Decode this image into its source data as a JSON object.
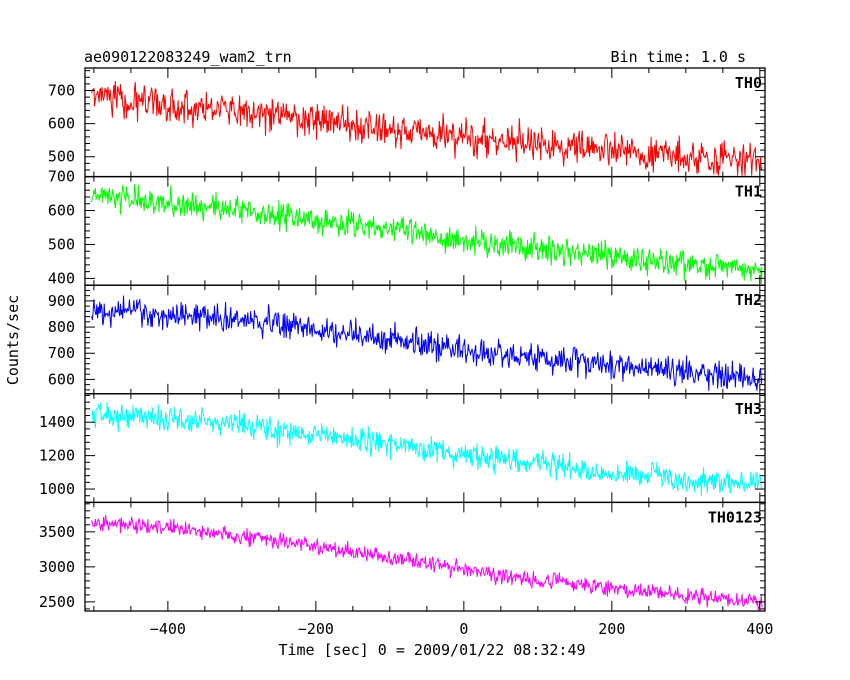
{
  "header": {
    "title": "ae090122083249_wam2_trn",
    "bin_time": "Bin time: 1.0 s"
  },
  "chart_data": {
    "type": "line",
    "title": "ae090122083249_wam2_trn",
    "subtitle": "Bin time: 1.0 s",
    "xlabel": "Time [sec] 0 = 2009/01/22 08:32:49",
    "ylabel": "Counts/sec",
    "xlim": [
      -512,
      407
    ],
    "xticks": [
      -400,
      -200,
      0,
      200,
      400
    ],
    "x_tick_labels": [
      "−400",
      "−200",
      "0",
      "200",
      "400"
    ],
    "data_x_range": [
      -503,
      403
    ],
    "panels": [
      {
        "name": "TH0",
        "color": "#ff0000",
        "ylim": [
          440,
          768
        ],
        "yticks": [
          500,
          600,
          700
        ],
        "y_tick_labels": [
          "500",
          "600",
          "700"
        ],
        "trend": {
          "x": [
            -500,
            -400,
            -300,
            -200,
            -100,
            0,
            100,
            200,
            300,
            400
          ],
          "y": [
            680,
            660,
            640,
            612,
            585,
            560,
            538,
            518,
            502,
            484
          ]
        },
        "noise": 30
      },
      {
        "name": "TH1",
        "color": "#00ff00",
        "ylim": [
          380,
          700
        ],
        "yticks": [
          400,
          500,
          600,
          700
        ],
        "y_tick_labels": [
          "400",
          "500",
          "600",
          "700"
        ],
        "trend": {
          "x": [
            -500,
            -400,
            -300,
            -200,
            -100,
            0,
            100,
            200,
            300,
            400
          ],
          "y": [
            640,
            622,
            600,
            570,
            545,
            515,
            490,
            465,
            443,
            420
          ]
        },
        "noise": 24
      },
      {
        "name": "TH2",
        "color": "#0000ff",
        "ylim": [
          545,
          960
        ],
        "yticks": [
          600,
          700,
          800,
          900
        ],
        "y_tick_labels": [
          "600",
          "700",
          "800",
          "900"
        ],
        "trend": {
          "x": [
            -500,
            -400,
            -300,
            -200,
            -100,
            0,
            100,
            200,
            300,
            400
          ],
          "y": [
            870,
            850,
            825,
            795,
            755,
            715,
            680,
            655,
            625,
            600
          ]
        },
        "noise": 32
      },
      {
        "name": "TH3",
        "color": "#00ffff",
        "ylim": [
          920,
          1570
        ],
        "yticks": [
          1000,
          1200,
          1400
        ],
        "y_tick_labels": [
          "1000",
          "1200",
          "1400"
        ],
        "trend": {
          "x": [
            -500,
            -400,
            -300,
            -200,
            -100,
            0,
            100,
            200,
            300,
            400
          ],
          "y": [
            1455,
            1420,
            1380,
            1330,
            1270,
            1205,
            1150,
            1100,
            1060,
            1030
          ]
        },
        "noise": 45
      },
      {
        "name": "TH0123",
        "color": "#ff00ff",
        "ylim": [
          2370,
          3920
        ],
        "yticks": [
          2500,
          3000,
          3500
        ],
        "y_tick_labels": [
          "2500",
          "3000",
          "3500"
        ],
        "trend": {
          "x": [
            -500,
            -400,
            -300,
            -200,
            -100,
            0,
            100,
            200,
            300,
            400
          ],
          "y": [
            3640,
            3560,
            3440,
            3290,
            3140,
            2960,
            2820,
            2700,
            2590,
            2490
          ]
        },
        "noise": 70
      }
    ]
  }
}
